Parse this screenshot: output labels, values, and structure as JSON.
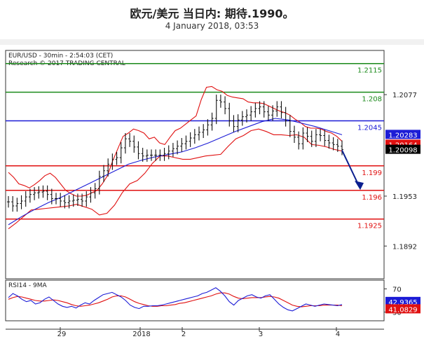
{
  "header": {
    "title": "欧元/美元 当日内: 期待.1990。",
    "date": "4 January 2018, 03:53"
  },
  "chart_data": {
    "type": "candlestick",
    "info_line1": "EUR/USD - 30min - 2:54:03 (CET)",
    "info_line2": "Research © 2017 TRADING CENTRAL",
    "y_ticks": [
      "1.2077",
      "1.1953",
      "1.1892"
    ],
    "ylim": [
      1.1852,
      1.2131
    ],
    "levels": [
      {
        "value": 1.2115,
        "label": "1.2115",
        "color": "#1a8a1a"
      },
      {
        "value": 1.208,
        "label": "1.208",
        "color": "#1a8a1a"
      },
      {
        "value": 1.2045,
        "label": "1.2045",
        "color": "#1c1cd6"
      },
      {
        "value": 1.199,
        "label": "1.199",
        "color": "#e01010"
      },
      {
        "value": 1.196,
        "label": "1.196",
        "color": "#e01010"
      },
      {
        "value": 1.1925,
        "label": "1.1925",
        "color": "#e01010"
      }
    ],
    "tags": [
      {
        "value": 1.2028,
        "label": "1.20283",
        "color": "#1c1cd6"
      },
      {
        "value": 1.2016,
        "label": "1.20164",
        "color": "#e01010"
      },
      {
        "value": 1.20098,
        "label": "1.20098",
        "color": "#000000"
      }
    ],
    "x_labels": [
      "29",
      "2018",
      "2",
      "3",
      "4"
    ],
    "close": [
      1.1946,
      1.1941,
      1.1944,
      1.1947,
      1.1952,
      1.1955,
      1.1957,
      1.1958,
      1.1959,
      1.1955,
      1.195,
      1.195,
      1.1947,
      1.1945,
      1.1947,
      1.1948,
      1.1949,
      1.1947,
      1.1952,
      1.1957,
      1.1962,
      1.1977,
      1.1984,
      1.1992,
      1.1998,
      1.2,
      1.2012,
      1.2023,
      1.202,
      1.2013,
      1.2005,
      1.2002,
      1.2003,
      1.2003,
      1.2003,
      1.2003,
      1.2005,
      1.2008,
      1.2011,
      1.2014,
      1.2017,
      1.202,
      1.2024,
      1.2028,
      1.2031,
      1.2034,
      1.204,
      1.2048,
      1.207,
      1.2068,
      1.206,
      1.2045,
      1.2038,
      1.2046,
      1.205,
      1.2052,
      1.2056,
      1.206,
      1.2062,
      1.2056,
      1.2052,
      1.2057,
      1.2062,
      1.2055,
      1.2045,
      1.2032,
      1.2025,
      1.2017,
      1.203,
      1.2026,
      1.202,
      1.2028,
      1.2027,
      1.2021,
      1.2018,
      1.2016,
      1.2014,
      1.201
    ],
    "upper_band": [
      1.1982,
      1.1976,
      1.1968,
      1.1966,
      1.1963,
      1.1967,
      1.1972,
      1.1978,
      1.1981,
      1.1976,
      1.1968,
      1.196,
      1.1956,
      1.1953,
      1.1953,
      1.1954,
      1.1957,
      1.196,
      1.1968,
      1.1978,
      1.1996,
      1.2011,
      1.2026,
      1.203,
      1.2035,
      1.2033,
      1.203,
      1.2023,
      1.2025,
      1.2018,
      1.2016,
      1.2025,
      1.2033,
      1.2036,
      1.2041,
      1.2046,
      1.2051,
      1.2071,
      1.2086,
      1.2087,
      1.2083,
      1.2081,
      1.2076,
      1.2074,
      1.2073,
      1.2072,
      1.2068,
      1.2067,
      1.2067,
      1.2066,
      1.2063,
      1.206,
      1.2057,
      1.2055,
      1.2052,
      1.2047,
      1.2043,
      1.2038,
      1.2036,
      1.2036,
      1.2035,
      1.2032,
      1.203,
      1.2026,
      1.202
    ],
    "lower_band": [
      1.1913,
      1.192,
      1.1928,
      1.1936,
      1.1937,
      1.1938,
      1.1939,
      1.194,
      1.1941,
      1.1943,
      1.194,
      1.1937,
      1.193,
      1.1932,
      1.1942,
      1.1957,
      1.1968,
      1.1972,
      1.1981,
      1.1993,
      1.2002,
      1.2002,
      1.2,
      1.1998,
      1.1998,
      1.2,
      1.2002,
      1.2003,
      1.2004,
      1.2014,
      1.2023,
      1.2027,
      1.2033,
      1.2035,
      1.2032,
      1.2028,
      1.2028,
      1.2027,
      1.2028,
      1.2025,
      1.2016,
      1.2015,
      1.2013,
      1.201,
      1.2008
    ],
    "ma": [
      1.1918,
      1.1928,
      1.1937,
      1.1945,
      1.1952,
      1.196,
      1.1968,
      1.1976,
      1.1984,
      1.1992,
      1.1997,
      1.2001,
      1.2004,
      1.2007,
      1.2012,
      1.2018,
      1.2025,
      1.2032,
      1.2038,
      1.2044,
      1.2048,
      1.2046,
      1.2042,
      1.2038,
      1.2033,
      1.2028
    ],
    "rsi": {
      "label": "RSI14 - 9MA",
      "ticks": [
        "70",
        "30"
      ],
      "ylim": [
        15,
        85
      ],
      "tags": [
        {
          "value": 42.9365,
          "label": "42.9365",
          "color": "#1c1cd6"
        },
        {
          "value": 41.0829,
          "label": "41.0829",
          "color": "#e01010"
        }
      ],
      "rsi_values": [
        55,
        62,
        58,
        52,
        48,
        50,
        44,
        46,
        52,
        56,
        50,
        44,
        40,
        38,
        40,
        37,
        42,
        46,
        44,
        50,
        55,
        60,
        62,
        64,
        60,
        56,
        50,
        42,
        38,
        36,
        40,
        40,
        41,
        41,
        42,
        44,
        46,
        48,
        50,
        52,
        54,
        56,
        58,
        62,
        64,
        68,
        72,
        66,
        58,
        48,
        42,
        50,
        54,
        58,
        60,
        56,
        54,
        58,
        60,
        52,
        44,
        38,
        34,
        32,
        36,
        40,
        44,
        42,
        40,
        42,
        44,
        43,
        42,
        41,
        43
      ],
      "ma_values": [
        52,
        55,
        57,
        56,
        54,
        52,
        50,
        49,
        49,
        50,
        51,
        50,
        48,
        46,
        43,
        41,
        40,
        41,
        42,
        44,
        46,
        49,
        52,
        56,
        58,
        58,
        56,
        52,
        48,
        45,
        43,
        41,
        40,
        40,
        41,
        41,
        42,
        43,
        45,
        46,
        48,
        50,
        52,
        54,
        56,
        58,
        61,
        63,
        63,
        61,
        57,
        54,
        53,
        54,
        55,
        55,
        55,
        56,
        57,
        56,
        54,
        50,
        46,
        42,
        40,
        39,
        40,
        41,
        41,
        41,
        42,
        42,
        42,
        42,
        41
      ]
    },
    "projection": {
      "from": 1.2009,
      "to": 1.1964,
      "color": "#0b1f8f"
    }
  }
}
